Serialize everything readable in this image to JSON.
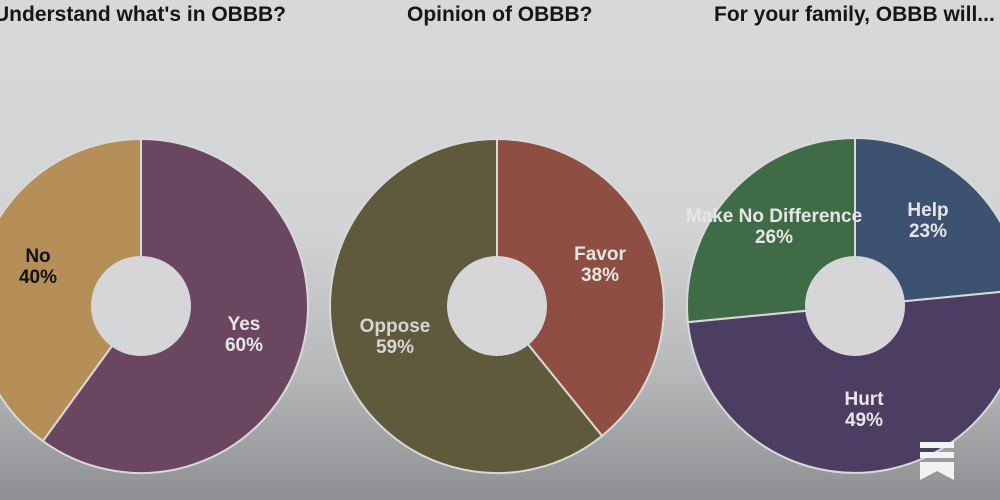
{
  "chart_data": [
    {
      "type": "pie",
      "title": "Understand what's in OBBB?",
      "slices": [
        {
          "label": "Yes",
          "value": 60,
          "pct_label": "60%",
          "color": "#6b4660"
        },
        {
          "label": "No",
          "value": 40,
          "pct_label": "40%",
          "color": "#b58f57"
        }
      ],
      "label_colors": {
        "Yes": "#e6e6e6",
        "No": "#111111"
      }
    },
    {
      "type": "pie",
      "title": "Opinion of OBBB?",
      "slices": [
        {
          "label": "Favor",
          "value": 38,
          "pct_label": "38%",
          "color": "#8f4e42"
        },
        {
          "label": "Oppose",
          "value": 59,
          "pct_label": "59%",
          "color": "#5e5a3b"
        }
      ],
      "label_colors": {
        "Favor": "#e6e6e6",
        "Oppose": "#d6d6d6"
      }
    },
    {
      "type": "pie",
      "title": "For your family, OBBB will...",
      "slices": [
        {
          "label": "Help",
          "value": 23,
          "pct_label": "23%",
          "color": "#3d5270"
        },
        {
          "label": "Hurt",
          "value": 49,
          "pct_label": "49%",
          "color": "#4c3e63"
        },
        {
          "label": "Make No Difference",
          "value": 26,
          "pct_label": "26%",
          "color": "#3f6b46"
        }
      ],
      "label_colors": {
        "Help": "#e6e6e6",
        "Hurt": "#e6e6e6",
        "Make No Difference": "#e6e6e6"
      }
    }
  ],
  "icons": {
    "corner": "bookmark-icon"
  }
}
